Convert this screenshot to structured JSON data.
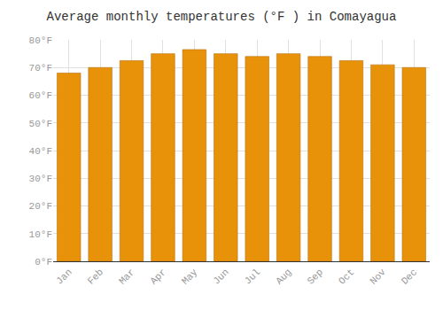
{
  "chart_data": {
    "type": "bar",
    "title": "Average monthly temperatures (°F ) in Comayagua",
    "categories": [
      "Jan",
      "Feb",
      "Mar",
      "Apr",
      "May",
      "Jun",
      "Jul",
      "Aug",
      "Sep",
      "Oct",
      "Nov",
      "Dec"
    ],
    "values": [
      68,
      70,
      72.5,
      75,
      76.5,
      75,
      74,
      75,
      74,
      72.5,
      71,
      70
    ],
    "color": "#E8920A",
    "ylim": [
      0,
      80
    ],
    "yticks": [
      {
        "value": 0,
        "label": "0°F"
      },
      {
        "value": 10,
        "label": "10°F"
      },
      {
        "value": 20,
        "label": "20°F"
      },
      {
        "value": 30,
        "label": "30°F"
      },
      {
        "value": 40,
        "label": "40°F"
      },
      {
        "value": 50,
        "label": "50°F"
      },
      {
        "value": 60,
        "label": "60°F"
      },
      {
        "value": 70,
        "label": "70°F"
      },
      {
        "value": 80,
        "label": "80°F"
      }
    ],
    "grid": true
  }
}
